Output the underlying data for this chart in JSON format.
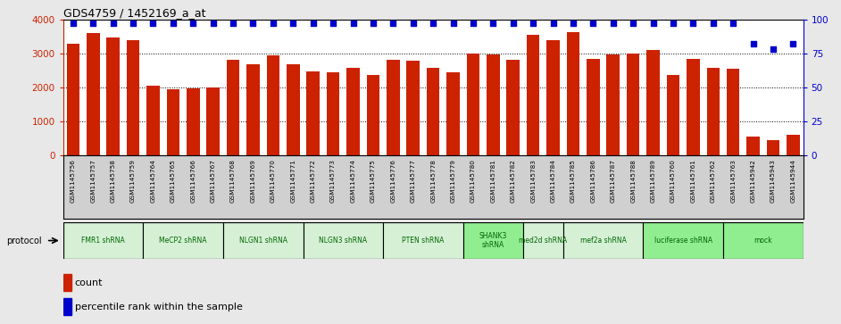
{
  "title": "GDS4759 / 1452169_a_at",
  "samples": [
    "GSM1145756",
    "GSM1145757",
    "GSM1145758",
    "GSM1145759",
    "GSM1145764",
    "GSM1145765",
    "GSM1145766",
    "GSM1145767",
    "GSM1145768",
    "GSM1145769",
    "GSM1145770",
    "GSM1145771",
    "GSM1145772",
    "GSM1145773",
    "GSM1145774",
    "GSM1145775",
    "GSM1145776",
    "GSM1145777",
    "GSM1145778",
    "GSM1145779",
    "GSM1145780",
    "GSM1145781",
    "GSM1145782",
    "GSM1145783",
    "GSM1145784",
    "GSM1145785",
    "GSM1145786",
    "GSM1145787",
    "GSM1145788",
    "GSM1145789",
    "GSM1145760",
    "GSM1145761",
    "GSM1145762",
    "GSM1145763",
    "GSM1145942",
    "GSM1145943",
    "GSM1145944"
  ],
  "bar_values": [
    3280,
    3590,
    3470,
    3380,
    2040,
    1960,
    1970,
    2000,
    2820,
    2690,
    2940,
    2670,
    2480,
    2440,
    2580,
    2360,
    2820,
    2800,
    2590,
    2440,
    3010,
    2960,
    2820,
    3540,
    3400,
    3640,
    2840,
    2960,
    3000,
    3110,
    2380,
    2840,
    2590,
    2560,
    550,
    450,
    600
  ],
  "percentile_values": [
    97,
    97,
    97,
    97,
    97,
    97,
    97,
    97,
    97,
    97,
    97,
    97,
    97,
    97,
    97,
    97,
    97,
    97,
    97,
    97,
    97,
    97,
    97,
    97,
    97,
    97,
    97,
    97,
    97,
    97,
    97,
    97,
    97,
    97,
    82,
    78,
    82
  ],
  "bar_color": "#cc2200",
  "dot_color": "#0000cc",
  "ylim_left": [
    0,
    4000
  ],
  "ylim_right": [
    0,
    100
  ],
  "yticks_left": [
    0,
    1000,
    2000,
    3000,
    4000
  ],
  "yticks_right": [
    0,
    25,
    50,
    75,
    100
  ],
  "groups": [
    {
      "label": "FMR1 shRNA",
      "start": 0,
      "end": 4,
      "color": "#d6f0d6"
    },
    {
      "label": "MeCP2 shRNA",
      "start": 4,
      "end": 8,
      "color": "#d6f0d6"
    },
    {
      "label": "NLGN1 shRNA",
      "start": 8,
      "end": 12,
      "color": "#d6f0d6"
    },
    {
      "label": "NLGN3 shRNA",
      "start": 12,
      "end": 16,
      "color": "#d6f0d6"
    },
    {
      "label": "PTEN shRNA",
      "start": 16,
      "end": 20,
      "color": "#d6f0d6"
    },
    {
      "label": "SHANK3\nshRNA",
      "start": 20,
      "end": 23,
      "color": "#90ee90"
    },
    {
      "label": "med2d shRNA",
      "start": 23,
      "end": 25,
      "color": "#d6f0d6"
    },
    {
      "label": "mef2a shRNA",
      "start": 25,
      "end": 29,
      "color": "#d6f0d6"
    },
    {
      "label": "luciferase shRNA",
      "start": 29,
      "end": 33,
      "color": "#90ee90"
    },
    {
      "label": "mock",
      "start": 33,
      "end": 37,
      "color": "#90ee90"
    }
  ],
  "fig_bg": "#e8e8e8",
  "plot_bg": "#ffffff",
  "xtick_bg": "#d0d0d0",
  "left_axis_color": "#cc2200",
  "right_axis_color": "#0000cc"
}
